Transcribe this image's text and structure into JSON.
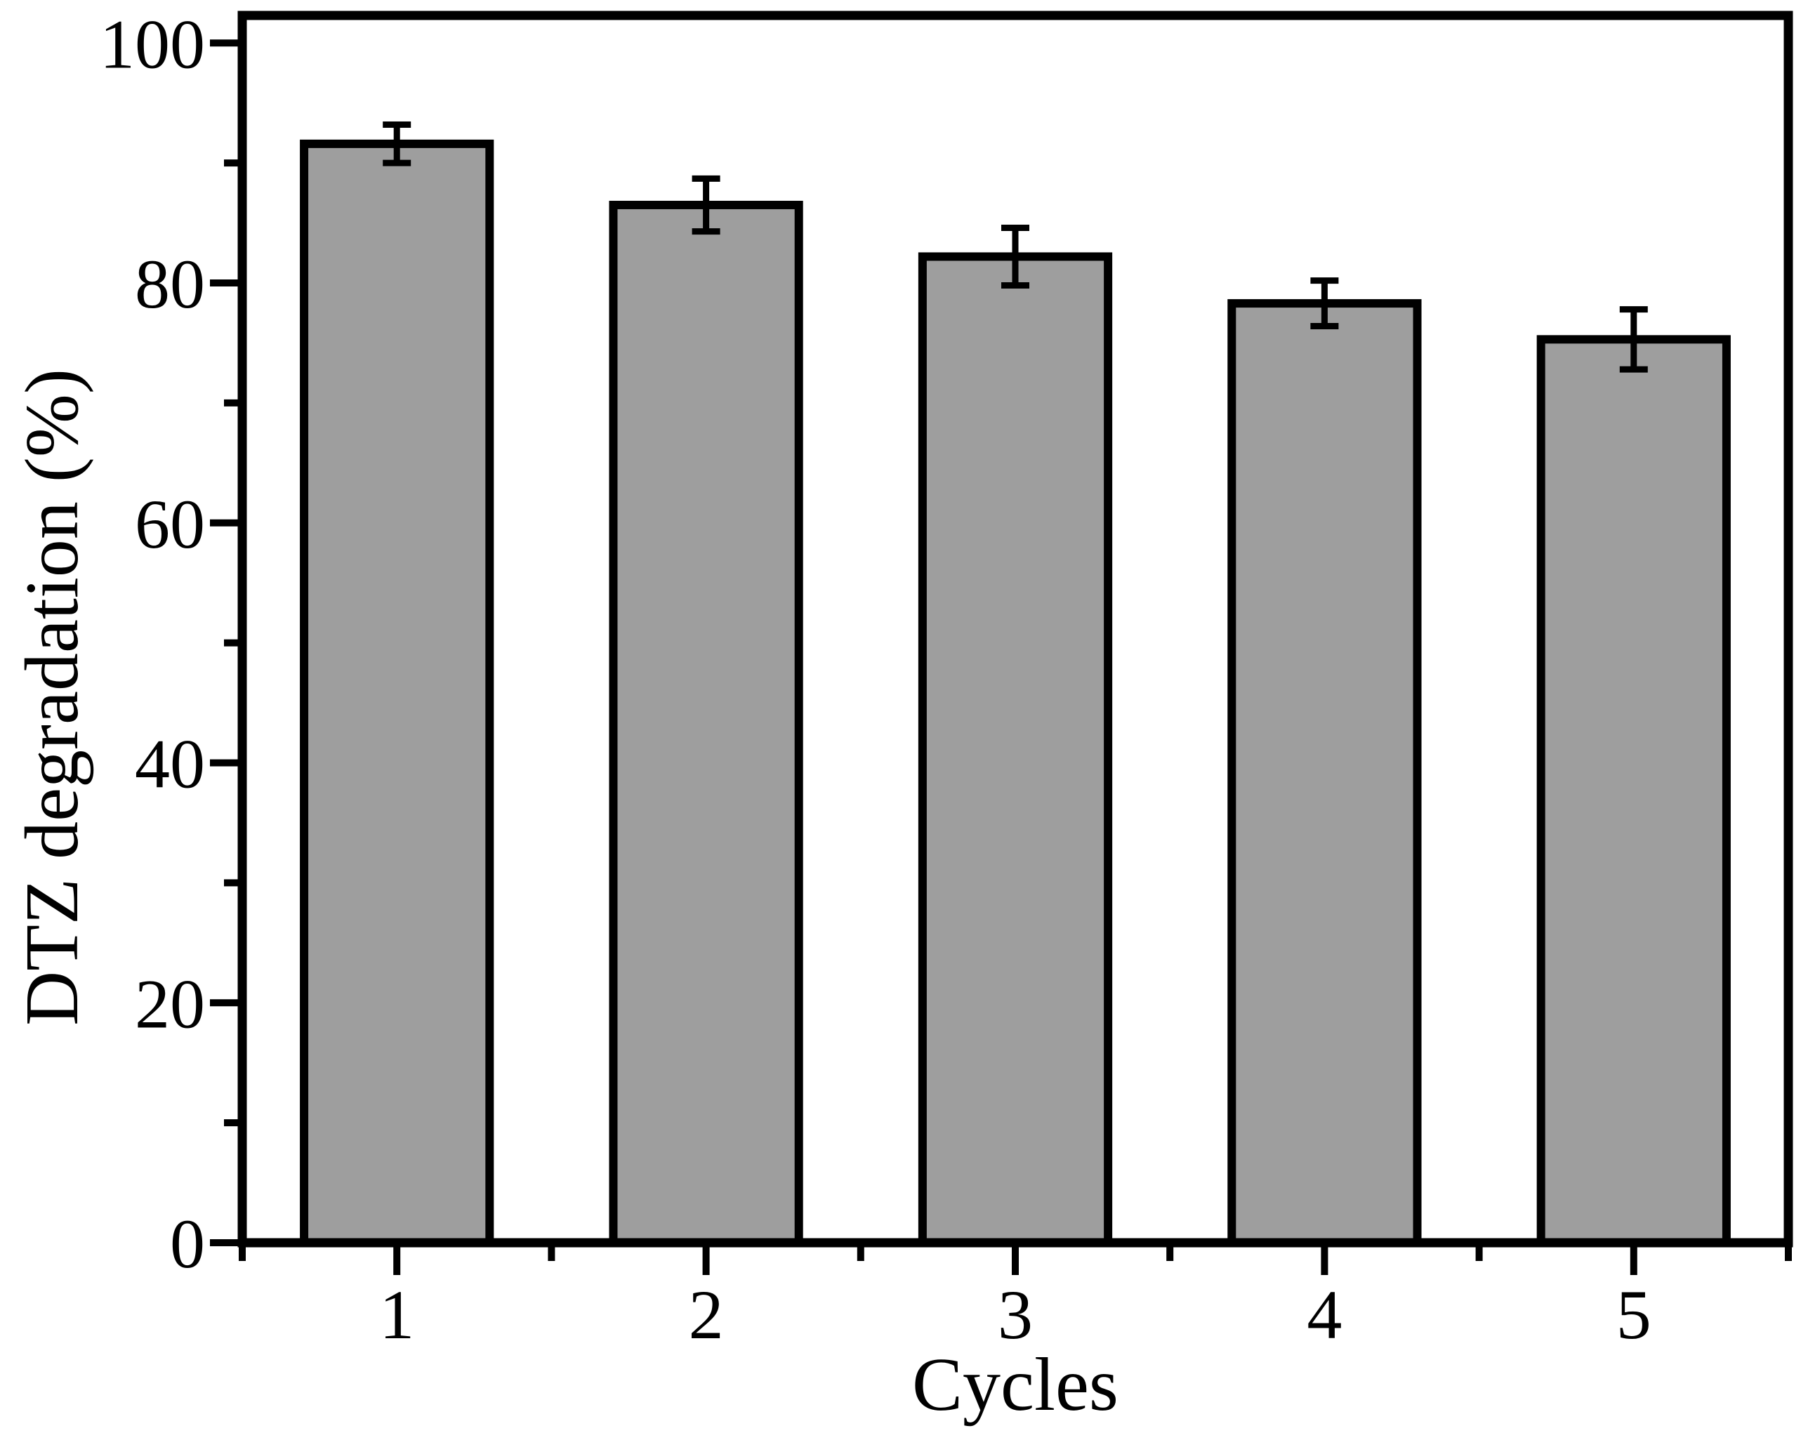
{
  "chart_data": {
    "type": "bar",
    "xlabel": "Cycles",
    "ylabel": "DTZ degradation (%)",
    "categories": [
      "1",
      "2",
      "3",
      "4",
      "5"
    ],
    "values": [
      91.6,
      86.5,
      82.2,
      78.3,
      75.3
    ],
    "errors": [
      1.6,
      2.2,
      2.4,
      1.9,
      2.5
    ],
    "error_bar_style": "symmetric-caps",
    "xlim": [
      0.5,
      5.5
    ],
    "ylim": [
      0,
      102.3
    ],
    "yticks_major": [
      0,
      20,
      40,
      60,
      80,
      100
    ],
    "yticks_minor": [
      10,
      30,
      50,
      70,
      90
    ],
    "xticks_major": [
      1,
      2,
      3,
      4,
      5
    ],
    "xticks_minor": [
      0.5,
      1.5,
      2.5,
      3.5,
      4.5,
      5.5
    ],
    "grid": false,
    "legend": "none",
    "bar_width_fraction": 0.6,
    "bar_color": "#9e9e9e",
    "bar_edge_color": "#000000",
    "axis_color": "#000000",
    "text_color": "#000000",
    "background_color": "#ffffff"
  }
}
